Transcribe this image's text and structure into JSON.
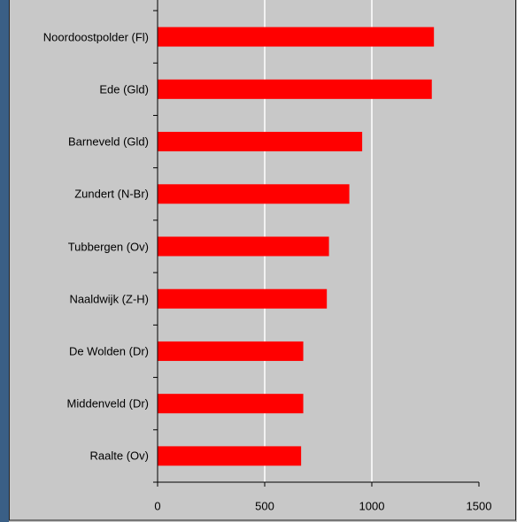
{
  "chart_data": {
    "type": "barh",
    "categories": [
      "Noordoostpolder (Fl)",
      "Ede (Gld)",
      "Barneveld (Gld)",
      "Zundert (N-Br)",
      "Tubbergen (Ov)",
      "Naaldwijk (Z-H)",
      "De Wolden (Dr)",
      "Middenveld (Dr)",
      "Raalte (Ov)"
    ],
    "values": [
      1290,
      1280,
      955,
      895,
      800,
      790,
      680,
      680,
      670
    ],
    "color": "#ff0000",
    "xlim": [
      0,
      1500
    ],
    "xticks": [
      0,
      500,
      1000,
      1500
    ],
    "grid": true
  }
}
